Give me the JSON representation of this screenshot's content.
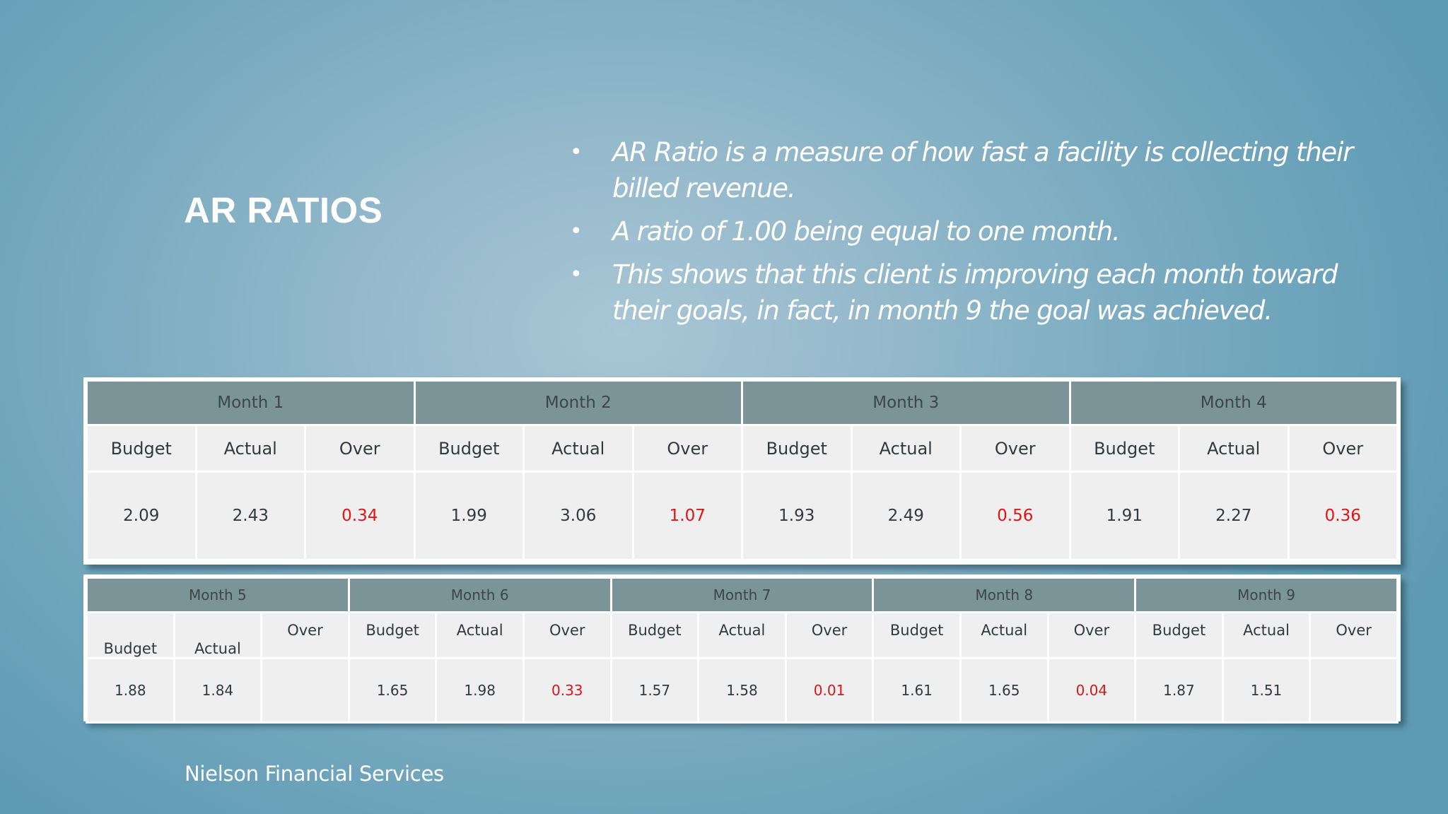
{
  "slide": {
    "title": "AR RATIOS",
    "bullet_glyph": "•",
    "bullets": [
      "AR Ratio is a measure of how fast a facility is collecting their billed revenue.",
      "A ratio of 1.00 being equal to one month.",
      "This shows that this client is improving each month toward their goals, in fact, in month 9 the goal was achieved."
    ],
    "footer": "Nielson Financial Services"
  },
  "colors": {
    "header_bg": "#7b9498",
    "cell_bg": "#efeff0",
    "over_text": "#e01414",
    "text": "#333a3d"
  },
  "columns": {
    "budget": "Budget",
    "actual": "Actual",
    "over": "Over"
  },
  "table1": {
    "months": [
      {
        "label": "Month 1",
        "budget": "2.09",
        "actual": "2.43",
        "over": "0.34"
      },
      {
        "label": "Month 2",
        "budget": "1.99",
        "actual": "3.06",
        "over": "1.07"
      },
      {
        "label": "Month 3",
        "budget": "1.93",
        "actual": "2.49",
        "over": "0.56"
      },
      {
        "label": "Month 4",
        "budget": "1.91",
        "actual": "2.27",
        "over": "0.36"
      }
    ]
  },
  "table2": {
    "months": [
      {
        "label": "Month 5",
        "budget": "1.88",
        "actual": "1.84",
        "over": ""
      },
      {
        "label": "Month 6",
        "budget": "1.65",
        "actual": "1.98",
        "over": "0.33"
      },
      {
        "label": "Month 7",
        "budget": "1.57",
        "actual": "1.58",
        "over": "0.01"
      },
      {
        "label": "Month 8",
        "budget": "1.61",
        "actual": "1.65",
        "over": "0.04"
      },
      {
        "label": "Month 9",
        "budget": "1.87",
        "actual": "1.51",
        "over": ""
      }
    ]
  }
}
